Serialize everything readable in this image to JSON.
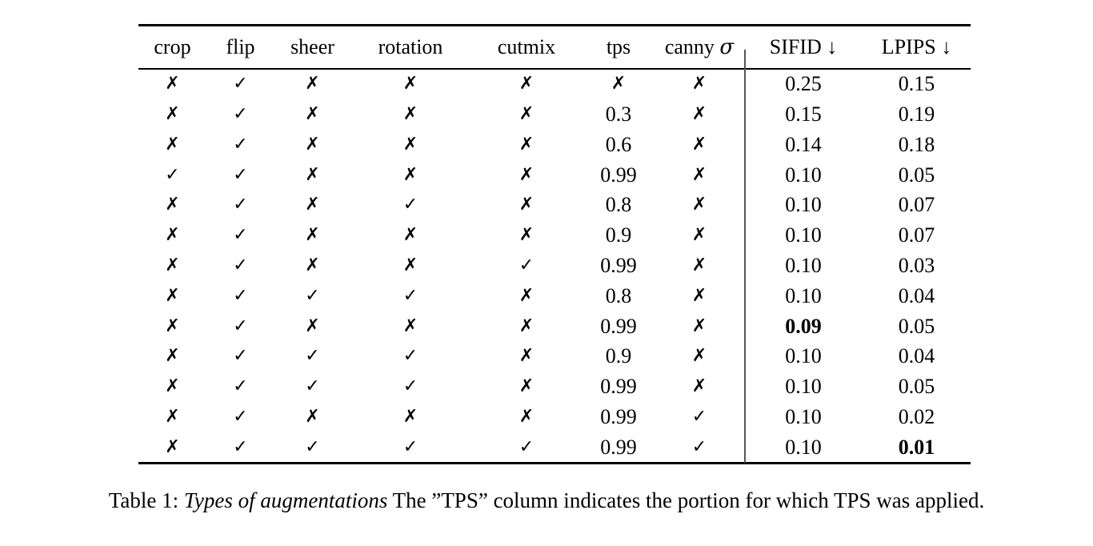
{
  "colors": {
    "text": "#000000",
    "background": "#ffffff",
    "divider": "#555555"
  },
  "table": {
    "headers": [
      "crop",
      "flip",
      "sheer",
      "rotation",
      "cutmix",
      "tps",
      "canny σ",
      "SIFID ↓",
      "LPIPS ↓"
    ],
    "rows": [
      [
        "✗",
        "✓",
        "✗",
        "✗",
        "✗",
        "✗",
        "✗",
        "0.25",
        "0.15"
      ],
      [
        "✗",
        "✓",
        "✗",
        "✗",
        "✗",
        "0.3",
        "✗",
        "0.15",
        "0.19"
      ],
      [
        "✗",
        "✓",
        "✗",
        "✗",
        "✗",
        "0.6",
        "✗",
        "0.14",
        "0.18"
      ],
      [
        "✓",
        "✓",
        "✗",
        "✗",
        "✗",
        "0.99",
        "✗",
        "0.10",
        "0.05"
      ],
      [
        "✗",
        "✓",
        "✗",
        "✓",
        "✗",
        "0.8",
        "✗",
        "0.10",
        "0.07"
      ],
      [
        "✗",
        "✓",
        "✗",
        "✗",
        "✗",
        "0.9",
        "✗",
        "0.10",
        "0.07"
      ],
      [
        "✗",
        "✓",
        "✗",
        "✗",
        "✓",
        "0.99",
        "✗",
        "0.10",
        "0.03"
      ],
      [
        "✗",
        "✓",
        "✓",
        "✓",
        "✗",
        "0.8",
        "✗",
        "0.10",
        "0.04"
      ],
      [
        "✗",
        "✓",
        "✗",
        "✗",
        "✗",
        "0.99",
        "✗",
        "0.09",
        "0.05"
      ],
      [
        "✗",
        "✓",
        "✓",
        "✓",
        "✗",
        "0.9",
        "✗",
        "0.10",
        "0.04"
      ],
      [
        "✗",
        "✓",
        "✓",
        "✓",
        "✗",
        "0.99",
        "✗",
        "0.10",
        "0.05"
      ],
      [
        "✗",
        "✓",
        "✗",
        "✗",
        "✗",
        "0.99",
        "✓",
        "0.10",
        "0.02"
      ],
      [
        "✗",
        "✓",
        "✓",
        "✓",
        "✓",
        "0.99",
        "✓",
        "0.10",
        "0.01"
      ]
    ],
    "bold_cells": [
      {
        "row": 8,
        "col": 7
      },
      {
        "row": 12,
        "col": 8
      }
    ],
    "check_mark": "✓",
    "cross_mark": "✗"
  },
  "caption": {
    "prefix": "Table 1: ",
    "italic_title": "Types of augmentations",
    "rest": " The ”TPS” column indicates the portion for which TPS was applied."
  }
}
